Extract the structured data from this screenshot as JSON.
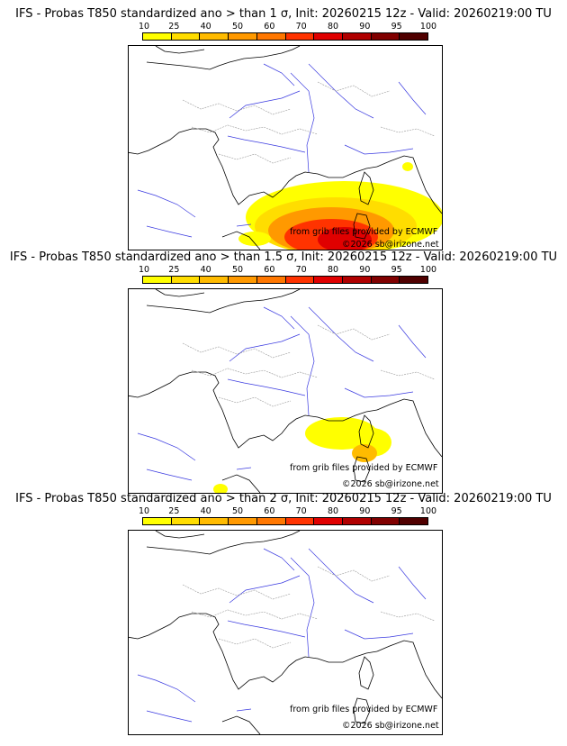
{
  "legend": {
    "ticks": [
      "10",
      "25",
      "40",
      "50",
      "60",
      "70",
      "80",
      "90",
      "95",
      "100"
    ],
    "colors": [
      "#ffff00",
      "#ffdd00",
      "#ffbb00",
      "#ff9900",
      "#ff7700",
      "#ff3300",
      "#e00000",
      "#b00000",
      "#800000",
      "#500000"
    ]
  },
  "credits": {
    "grib": "from grib files provided by ECMWF",
    "copyright": "©2026 sb@irizone.net"
  },
  "panels": [
    {
      "title": "IFS - Probas T850  standardized ano > than 1 σ, Init: 20260215 12z - Valid: 20260219:00 TU",
      "level": 3
    },
    {
      "title": "IFS - Probas T850  standardized ano > than 1.5 σ, Init: 20260215 12z - Valid: 20260219:00 TU",
      "level": 1
    },
    {
      "title": "IFS - Probas T850  standardized ano > than 2 σ, Init: 20260215 12z - Valid: 20260219:00 TU",
      "level": 0
    }
  ]
}
